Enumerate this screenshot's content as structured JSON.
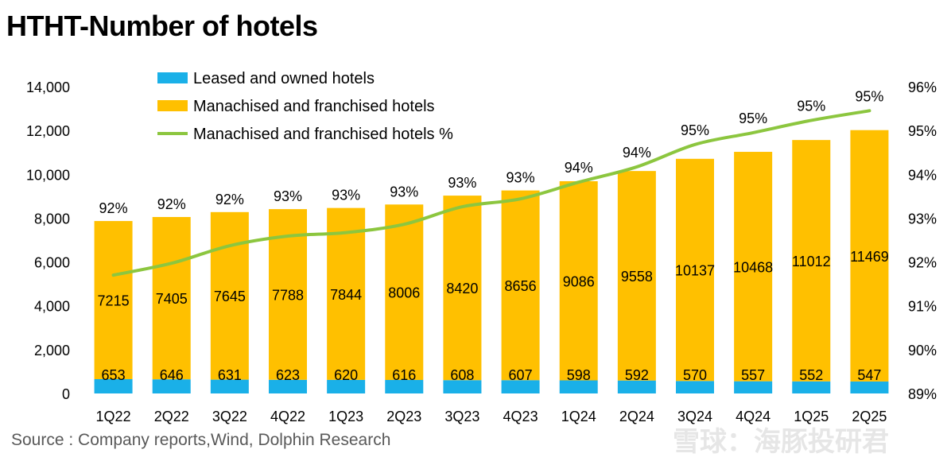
{
  "title": "HTHT-Number of hotels",
  "source": "Source : Company reports,Wind, Dolphin Research",
  "watermark": "雪球：海豚投研君",
  "colors": {
    "leased": "#1ab0e8",
    "franchised": "#ffc000",
    "line": "#8cc63f",
    "watermark": "#e6e6e6"
  },
  "chart_data": {
    "type": "bar",
    "stacked": true,
    "categories": [
      "1Q22",
      "2Q22",
      "3Q22",
      "4Q22",
      "1Q23",
      "2Q23",
      "3Q23",
      "4Q23",
      "1Q24",
      "2Q24",
      "3Q24",
      "4Q24",
      "1Q25",
      "2Q25"
    ],
    "series": [
      {
        "name": "Leased and owned hotels",
        "type": "bar",
        "axis": "left",
        "values": [
          653,
          646,
          631,
          623,
          620,
          616,
          608,
          607,
          598,
          592,
          570,
          557,
          552,
          547
        ]
      },
      {
        "name": "Manachised and franchised hotels",
        "type": "bar",
        "axis": "left",
        "values": [
          7215,
          7405,
          7645,
          7788,
          7844,
          8006,
          8420,
          8656,
          9086,
          9558,
          10137,
          10468,
          11012,
          11469
        ]
      },
      {
        "name": "Manachised and franchised hotels %",
        "type": "line",
        "axis": "right",
        "values": [
          91.7,
          91.97,
          92.37,
          92.59,
          92.67,
          92.86,
          93.26,
          93.44,
          93.82,
          94.17,
          94.68,
          94.95,
          95.23,
          95.45
        ],
        "labels": [
          "92%",
          "92%",
          "92%",
          "93%",
          "93%",
          "93%",
          "93%",
          "93%",
          "94%",
          "94%",
          "95%",
          "95%",
          "95%",
          "95%"
        ]
      }
    ],
    "ylim": [
      0,
      14000
    ],
    "yticks": [
      "0",
      "2,000",
      "4,000",
      "6,000",
      "8,000",
      "10,000",
      "12,000",
      "14,000"
    ],
    "y2lim": [
      89,
      96
    ],
    "y2ticks": [
      "89%",
      "90%",
      "91%",
      "92%",
      "93%",
      "94%",
      "95%",
      "96%"
    ],
    "grid": false,
    "legend_position": "top-left"
  }
}
